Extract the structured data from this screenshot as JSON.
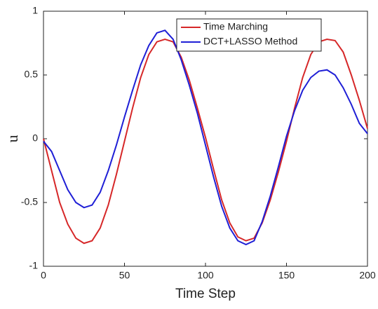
{
  "chart_data": {
    "type": "line",
    "xlabel": "Time Step",
    "ylabel": "u",
    "x": [
      0,
      5,
      10,
      15,
      20,
      25,
      30,
      35,
      40,
      45,
      50,
      55,
      60,
      65,
      70,
      75,
      80,
      85,
      90,
      95,
      100,
      105,
      110,
      115,
      120,
      125,
      130,
      135,
      140,
      145,
      150,
      155,
      160,
      165,
      170,
      175,
      180,
      185,
      190,
      195,
      200
    ],
    "series": [
      {
        "name": "Time Marching",
        "color": "#d62728",
        "values": [
          0,
          -0.25,
          -0.5,
          -0.67,
          -0.78,
          -0.82,
          -0.8,
          -0.7,
          -0.52,
          -0.28,
          -0.02,
          0.24,
          0.48,
          0.66,
          0.76,
          0.78,
          0.76,
          0.64,
          0.46,
          0.24,
          0.01,
          -0.24,
          -0.48,
          -0.66,
          -0.77,
          -0.8,
          -0.78,
          -0.66,
          -0.48,
          -0.26,
          -0.02,
          0.24,
          0.48,
          0.66,
          0.76,
          0.78,
          0.77,
          0.68,
          0.5,
          0.3,
          0.08
        ]
      },
      {
        "name": "DCT+LASSO Method",
        "color": "#1f1fd6",
        "values": [
          -0.02,
          -0.1,
          -0.25,
          -0.4,
          -0.5,
          -0.54,
          -0.52,
          -0.42,
          -0.25,
          -0.05,
          0.17,
          0.38,
          0.58,
          0.73,
          0.83,
          0.85,
          0.78,
          0.62,
          0.42,
          0.2,
          -0.05,
          -0.3,
          -0.53,
          -0.7,
          -0.8,
          -0.83,
          -0.8,
          -0.65,
          -0.45,
          -0.22,
          0.02,
          0.22,
          0.38,
          0.48,
          0.53,
          0.54,
          0.5,
          0.4,
          0.27,
          0.12,
          0.04
        ]
      }
    ],
    "xlim": [
      0,
      200
    ],
    "xticks": [
      0,
      50,
      100,
      150,
      200
    ],
    "ylim": [
      -1,
      1
    ],
    "yticks": [
      -1,
      -0.5,
      0,
      0.5,
      1
    ],
    "grid": false,
    "legend": "upper right"
  }
}
